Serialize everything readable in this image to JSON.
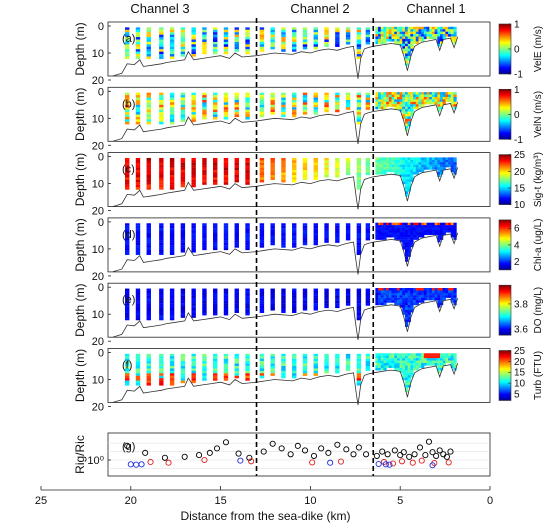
{
  "chart_data": {
    "type": "heatmap",
    "xlabel": "Distance from the sea-dike (km)",
    "x_ticks": [
      25,
      20,
      15,
      10,
      5,
      0
    ],
    "xlim": [
      25,
      0
    ],
    "channel_labels": [
      "Channel 3",
      "Channel 2",
      "Channel 1"
    ],
    "channel_boundaries_km": [
      13.0,
      6.5
    ],
    "depth_label": "Depth (m)",
    "depth_ticks": [
      0,
      10,
      20
    ],
    "depth_lim": [
      0,
      20
    ],
    "transect_km": [
      20.2,
      19.6,
      19.0,
      18.3,
      17.7,
      17.1,
      16.5,
      15.9,
      15.3,
      14.7,
      14.1,
      13.5,
      12.7,
      12.1,
      11.5,
      10.9,
      10.3,
      9.7,
      9.1,
      8.5,
      7.9,
      7.3,
      6.8
    ],
    "continuous_range_km": [
      6.3,
      1.8
    ],
    "bottom_depth_profile": [
      [
        21,
        18.5
      ],
      [
        20.5,
        17.5
      ],
      [
        20.2,
        14.0
      ],
      [
        19.8,
        14.3
      ],
      [
        19.5,
        12.5
      ],
      [
        19.3,
        15.0
      ],
      [
        18.8,
        14.5
      ],
      [
        18.3,
        14.0
      ],
      [
        18.0,
        13.5
      ],
      [
        17.5,
        13.0
      ],
      [
        17.0,
        12.5
      ],
      [
        16.8,
        9.5
      ],
      [
        16.5,
        12.5
      ],
      [
        16.0,
        12.0
      ],
      [
        15.5,
        11.5
      ],
      [
        15.0,
        11.0
      ],
      [
        14.5,
        12.0
      ],
      [
        14.2,
        10.0
      ],
      [
        13.8,
        11.5
      ],
      [
        13.0,
        11.0
      ],
      [
        12.5,
        10.5
      ],
      [
        12.0,
        10.0
      ],
      [
        11.0,
        10.5
      ],
      [
        10.5,
        9.5
      ],
      [
        10.0,
        10.0
      ],
      [
        9.5,
        9.0
      ],
      [
        9.0,
        8.5
      ],
      [
        8.5,
        9.0
      ],
      [
        8.0,
        8.0
      ],
      [
        7.6,
        7.5
      ],
      [
        7.45,
        15.0
      ],
      [
        7.35,
        19.5
      ],
      [
        7.2,
        12.0
      ],
      [
        7.0,
        8.5
      ],
      [
        6.8,
        8.0
      ],
      [
        6.5,
        7.5
      ],
      [
        6.0,
        7.0
      ],
      [
        5.5,
        6.5
      ],
      [
        5.0,
        7.0
      ],
      [
        4.8,
        11.0
      ],
      [
        4.6,
        16.5
      ],
      [
        4.4,
        11.0
      ],
      [
        4.2,
        7.5
      ],
      [
        3.8,
        6.0
      ],
      [
        3.4,
        5.5
      ],
      [
        3.0,
        5.0
      ],
      [
        2.8,
        9.0
      ],
      [
        2.6,
        5.0
      ],
      [
        2.2,
        4.5
      ],
      [
        2.0,
        8.0
      ],
      [
        1.8,
        4.0
      ]
    ],
    "panels": [
      {
        "id": "(a)",
        "variable": "VelE",
        "unit": "(m/s)",
        "colorbar_ticks": [
          1,
          0,
          -1
        ],
        "clim": [
          -1,
          1
        ]
      },
      {
        "id": "(b)",
        "variable": "VelN",
        "unit": "(m/s)",
        "colorbar_ticks": [
          1,
          0,
          -1
        ],
        "clim": [
          -1,
          1
        ]
      },
      {
        "id": "(c)",
        "variable": "Sig-t",
        "unit": "(kg/m³)",
        "colorbar_ticks": [
          25,
          20,
          15,
          10
        ],
        "clim": [
          10,
          25
        ]
      },
      {
        "id": "(d)",
        "variable": "Chl-a",
        "unit": "(ug/L)",
        "colorbar_ticks": [
          6,
          4,
          2
        ],
        "clim": [
          1,
          7
        ]
      },
      {
        "id": "(e)",
        "variable": "DO",
        "unit": "(mg/L)",
        "colorbar_ticks": [
          3.8,
          3.6
        ],
        "clim": [
          3.55,
          3.95
        ]
      },
      {
        "id": "(f)",
        "variable": "Turb",
        "unit": "(FTU)",
        "colorbar_ticks": [
          25,
          20,
          15,
          10,
          5
        ],
        "clim": [
          2,
          25
        ]
      }
    ],
    "panel_g": {
      "id": "(g)",
      "type": "scatter",
      "ylabel": "Rig/Ric",
      "y_tick_label": "10⁰",
      "scale": "log",
      "series": [
        {
          "color": "#000000",
          "x": [
            20.2,
            19.2,
            18.1,
            17.0,
            16.2,
            15.6,
            15.2,
            14.7,
            14.0,
            13.4,
            12.6,
            12.1,
            11.6,
            11.1,
            10.7,
            10.3,
            9.8,
            9.4,
            9.0,
            8.5,
            8.0,
            7.6,
            7.3,
            6.9,
            6.3,
            6.0,
            5.7,
            5.3,
            5.0,
            4.8,
            4.5,
            4.2,
            3.9,
            3.6,
            3.4,
            3.2,
            3.0,
            2.8,
            2.6,
            2.4,
            2.2
          ],
          "y": [
            3.2,
            1.8,
            1.2,
            1.3,
            1.5,
            1.8,
            2.6,
            4.3,
            1.7,
            1.2,
            2.0,
            3.8,
            2.6,
            1.6,
            3.2,
            2.2,
            1.4,
            2.6,
            1.8,
            3.5,
            2.4,
            1.6,
            2.8,
            1.6,
            1.4,
            2.0,
            1.6,
            2.2,
            1.5,
            1.9,
            1.3,
            1.6,
            2.8,
            1.5,
            4.5,
            1.9,
            1.4,
            2.2,
            1.6,
            1.3,
            2.0
          ]
        },
        {
          "color": "#e02020",
          "x": [
            18.9,
            17.9,
            15.9,
            13.3,
            9.9,
            8.3,
            5.9,
            5.4,
            4.9,
            4.3,
            3.8,
            3.1,
            2.3
          ],
          "y": [
            0.85,
            0.8,
            1.0,
            0.9,
            0.82,
            0.88,
            0.85,
            0.75,
            0.9,
            0.8,
            0.95,
            0.78,
            0.82
          ]
        },
        {
          "color": "#2030e0",
          "x": [
            20.0,
            19.7,
            19.4,
            13.9,
            8.9,
            6.2,
            5.8,
            5.6,
            3.2
          ],
          "y": [
            0.7,
            0.68,
            0.7,
            0.95,
            0.8,
            0.72,
            0.7,
            0.68,
            0.65
          ]
        }
      ]
    }
  }
}
